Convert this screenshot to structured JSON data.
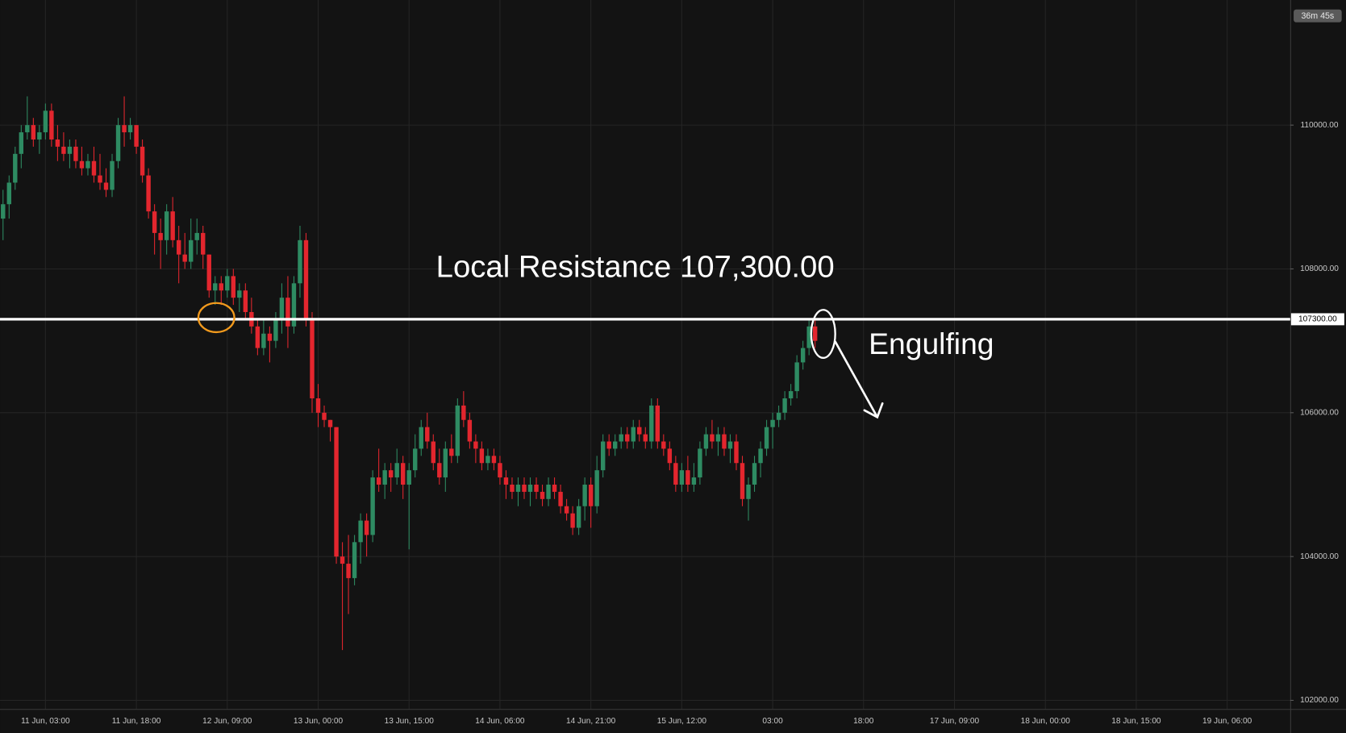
{
  "chart_data": {
    "type": "candlestick",
    "up_color": "#2e8b62",
    "down_color": "#e3262e",
    "grid": true,
    "xlim": [
      -4.5,
      208.4
    ],
    "ylim": [
      101880,
      111740
    ],
    "xticks": [
      {
        "value": 3,
        "label": "11 Jun, 03:00"
      },
      {
        "value": 18,
        "label": "11 Jun, 18:00"
      },
      {
        "value": 33,
        "label": "12 Jun, 09:00"
      },
      {
        "value": 48,
        "label": "13 Jun, 00:00"
      },
      {
        "value": 63,
        "label": "13 Jun, 15:00"
      },
      {
        "value": 78,
        "label": "14 Jun, 06:00"
      },
      {
        "value": 93,
        "label": "14 Jun, 21:00"
      },
      {
        "value": 108,
        "label": "15 Jun, 12:00"
      },
      {
        "value": 123,
        "label": "03:00"
      },
      {
        "value": 138,
        "label": "18:00"
      },
      {
        "value": 153,
        "label": "17 Jun, 09:00"
      },
      {
        "value": 168,
        "label": "18 Jun, 00:00"
      },
      {
        "value": 183,
        "label": "18 Jun, 15:00"
      },
      {
        "value": 198,
        "label": "19 Jun, 06:00"
      }
    ],
    "yticks": [
      {
        "value": 102000,
        "label": "102000.00"
      },
      {
        "value": 104000,
        "label": "104000.00"
      },
      {
        "value": 106000,
        "label": "106000.00"
      },
      {
        "value": 108000,
        "label": "108000.00"
      },
      {
        "value": 110000,
        "label": "110000.00"
      }
    ],
    "hline": {
      "value": 107300,
      "label": "107300.00",
      "color": "#ffffff"
    },
    "annotations": [
      "Local Resistance 107,300.00",
      "Engulfing"
    ],
    "countdown": "36m 45s",
    "x": [
      -4,
      -3,
      -2,
      -1,
      0,
      1,
      2,
      3,
      4,
      5,
      6,
      7,
      8,
      9,
      10,
      11,
      12,
      13,
      14,
      15,
      16,
      17,
      18,
      19,
      20,
      21,
      22,
      23,
      24,
      25,
      26,
      27,
      28,
      29,
      30,
      31,
      32,
      33,
      34,
      35,
      36,
      37,
      38,
      39,
      40,
      41,
      42,
      43,
      44,
      45,
      46,
      47,
      48,
      49,
      50,
      51,
      52,
      53,
      54,
      55,
      56,
      57,
      58,
      59,
      60,
      61,
      62,
      63,
      64,
      65,
      66,
      67,
      68,
      69,
      70,
      71,
      72,
      73,
      74,
      75,
      76,
      77,
      78,
      79,
      80,
      81,
      82,
      83,
      84,
      85,
      86,
      87,
      88,
      89,
      90,
      91,
      92,
      93,
      94,
      95,
      96,
      97,
      98,
      99,
      100,
      101,
      102,
      103,
      104,
      105,
      106,
      107,
      108,
      109,
      110,
      111,
      112,
      113,
      114,
      115,
      116,
      117,
      118,
      119,
      120,
      121,
      122,
      123,
      124,
      125,
      126,
      127,
      128,
      129,
      130
    ],
    "candles": [
      [
        108700,
        109100,
        108400,
        108900
      ],
      [
        108900,
        109300,
        108700,
        109200
      ],
      [
        109200,
        109700,
        109100,
        109600
      ],
      [
        109600,
        110000,
        109400,
        109900
      ],
      [
        109900,
        110400,
        109800,
        110000
      ],
      [
        110000,
        110100,
        109700,
        109800
      ],
      [
        109800,
        110000,
        109600,
        109900
      ],
      [
        109900,
        110300,
        109800,
        110200
      ],
      [
        110200,
        110300,
        109700,
        109800
      ],
      [
        109800,
        110000,
        109500,
        109700
      ],
      [
        109700,
        109900,
        109500,
        109600
      ],
      [
        109600,
        109800,
        109400,
        109700
      ],
      [
        109700,
        109800,
        109400,
        109500
      ],
      [
        109500,
        109700,
        109300,
        109400
      ],
      [
        109400,
        109600,
        109300,
        109500
      ],
      [
        109500,
        109700,
        109200,
        109300
      ],
      [
        109300,
        109600,
        109100,
        109200
      ],
      [
        109200,
        109400,
        109000,
        109100
      ],
      [
        109100,
        109600,
        109000,
        109500
      ],
      [
        109500,
        110100,
        109400,
        110000
      ],
      [
        110000,
        110400,
        109700,
        109900
      ],
      [
        109900,
        110100,
        109800,
        110000
      ],
      [
        110000,
        110000,
        109600,
        109700
      ],
      [
        109700,
        109800,
        109200,
        109300
      ],
      [
        109300,
        109400,
        108700,
        108800
      ],
      [
        108800,
        108900,
        108200,
        108500
      ],
      [
        108500,
        108700,
        108000,
        108400
      ],
      [
        108400,
        108900,
        108200,
        108800
      ],
      [
        108800,
        109000,
        108300,
        108400
      ],
      [
        108400,
        108600,
        107800,
        108200
      ],
      [
        108200,
        108500,
        108000,
        108100
      ],
      [
        108100,
        108700,
        108000,
        108400
      ],
      [
        108400,
        108700,
        108200,
        108500
      ],
      [
        108500,
        108600,
        108000,
        108200
      ],
      [
        108200,
        108200,
        107600,
        107700
      ],
      [
        107700,
        107900,
        107500,
        107800
      ],
      [
        107800,
        107900,
        107500,
        107700
      ],
      [
        107700,
        108000,
        107600,
        107900
      ],
      [
        107900,
        108000,
        107500,
        107600
      ],
      [
        107600,
        107800,
        107400,
        107700
      ],
      [
        107700,
        107800,
        107300,
        107400
      ],
      [
        107400,
        107600,
        107100,
        107200
      ],
      [
        107200,
        107300,
        106800,
        106900
      ],
      [
        106900,
        107300,
        106800,
        107100
      ],
      [
        107100,
        107200,
        106700,
        107000
      ],
      [
        107000,
        107400,
        106900,
        107300
      ],
      [
        107300,
        107800,
        107100,
        107600
      ],
      [
        107600,
        107900,
        106900,
        107200
      ],
      [
        107200,
        107900,
        107100,
        107800
      ],
      [
        107800,
        108600,
        107600,
        108400
      ],
      [
        108400,
        108500,
        107200,
        107300
      ],
      [
        107300,
        107400,
        106000,
        106200
      ],
      [
        106200,
        106400,
        105800,
        106000
      ],
      [
        106000,
        106100,
        105800,
        105900
      ],
      [
        105900,
        105900,
        105600,
        105800
      ],
      [
        105800,
        105800,
        103900,
        104000
      ],
      [
        104000,
        104200,
        102700,
        103900
      ],
      [
        103900,
        104300,
        103200,
        103700
      ],
      [
        103700,
        104300,
        103600,
        104200
      ],
      [
        104200,
        104600,
        103900,
        104500
      ],
      [
        104500,
        104600,
        104000,
        104300
      ],
      [
        104300,
        105200,
        104200,
        105100
      ],
      [
        105100,
        105500,
        104900,
        105000
      ],
      [
        105000,
        105300,
        104800,
        105200
      ],
      [
        105200,
        105300,
        104900,
        105100
      ],
      [
        105100,
        105500,
        105000,
        105300
      ],
      [
        105300,
        105400,
        104800,
        105000
      ],
      [
        105000,
        105300,
        104100,
        105200
      ],
      [
        105200,
        105700,
        105100,
        105500
      ],
      [
        105500,
        105900,
        105400,
        105800
      ],
      [
        105800,
        106000,
        105500,
        105600
      ],
      [
        105600,
        105700,
        105200,
        105300
      ],
      [
        105300,
        105500,
        105000,
        105100
      ],
      [
        105100,
        105600,
        104900,
        105500
      ],
      [
        105500,
        105700,
        105300,
        105400
      ],
      [
        105400,
        106200,
        105300,
        106100
      ],
      [
        106100,
        106300,
        105800,
        105900
      ],
      [
        105900,
        106000,
        105500,
        105600
      ],
      [
        105600,
        105700,
        105300,
        105500
      ],
      [
        105500,
        105600,
        105200,
        105300
      ],
      [
        105300,
        105500,
        105200,
        105400
      ],
      [
        105400,
        105500,
        105200,
        105300
      ],
      [
        105300,
        105400,
        105000,
        105100
      ],
      [
        105100,
        105200,
        104800,
        105000
      ],
      [
        105000,
        105100,
        104800,
        104900
      ],
      [
        104900,
        105100,
        104700,
        105000
      ],
      [
        105000,
        105100,
        104800,
        104900
      ],
      [
        104900,
        105100,
        104700,
        105000
      ],
      [
        105000,
        105100,
        104800,
        104900
      ],
      [
        104900,
        105000,
        104700,
        104800
      ],
      [
        104800,
        105100,
        104700,
        105000
      ],
      [
        105000,
        105100,
        104800,
        104900
      ],
      [
        104900,
        105000,
        104600,
        104700
      ],
      [
        104700,
        104800,
        104500,
        104600
      ],
      [
        104600,
        104700,
        104300,
        104400
      ],
      [
        104400,
        104800,
        104300,
        104700
      ],
      [
        104700,
        105100,
        104500,
        105000
      ],
      [
        105000,
        105100,
        104400,
        104700
      ],
      [
        104700,
        105400,
        104600,
        105200
      ],
      [
        105200,
        105700,
        105100,
        105600
      ],
      [
        105600,
        105700,
        105400,
        105500
      ],
      [
        105500,
        105700,
        105400,
        105600
      ],
      [
        105600,
        105800,
        105500,
        105700
      ],
      [
        105700,
        105800,
        105500,
        105600
      ],
      [
        105600,
        105900,
        105500,
        105800
      ],
      [
        105800,
        105900,
        105600,
        105700
      ],
      [
        105700,
        105800,
        105500,
        105600
      ],
      [
        105600,
        106200,
        105500,
        106100
      ],
      [
        106100,
        106200,
        105500,
        105600
      ],
      [
        105600,
        105700,
        105400,
        105500
      ],
      [
        105500,
        105600,
        105200,
        105300
      ],
      [
        105300,
        105400,
        104900,
        105000
      ],
      [
        105000,
        105300,
        104900,
        105200
      ],
      [
        105200,
        105400,
        104900,
        105000
      ],
      [
        105000,
        105300,
        104900,
        105100
      ],
      [
        105100,
        105600,
        105000,
        105500
      ],
      [
        105500,
        105800,
        105400,
        105700
      ],
      [
        105700,
        105900,
        105500,
        105600
      ],
      [
        105600,
        105800,
        105400,
        105700
      ],
      [
        105700,
        105800,
        105400,
        105500
      ],
      [
        105500,
        105700,
        105300,
        105600
      ],
      [
        105600,
        105700,
        105200,
        105300
      ],
      [
        105300,
        105400,
        104700,
        104800
      ],
      [
        104800,
        105100,
        104500,
        105000
      ],
      [
        105000,
        105400,
        104900,
        105300
      ],
      [
        105300,
        105600,
        105100,
        105500
      ],
      [
        105500,
        105900,
        105400,
        105800
      ],
      [
        105800,
        106000,
        105500,
        105900
      ],
      [
        105900,
        106100,
        105800,
        106000
      ],
      [
        106000,
        106300,
        105900,
        106200
      ],
      [
        106200,
        106400,
        106100,
        106300
      ],
      [
        106300,
        106800,
        106200,
        106700
      ],
      [
        106700,
        107000,
        106600,
        106900
      ],
      [
        106900,
        107300,
        106800,
        107200
      ],
      [
        107200,
        107300,
        106900,
        107000
      ]
    ]
  }
}
